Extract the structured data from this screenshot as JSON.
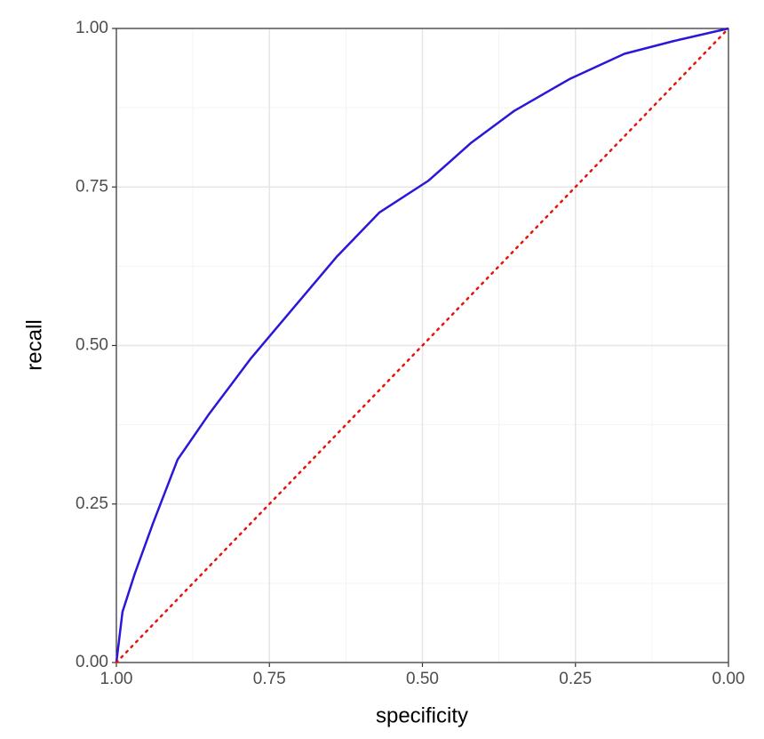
{
  "chart_data": {
    "type": "line",
    "xlabel": "specificity",
    "ylabel": "recall",
    "xlim": [
      1,
      0
    ],
    "ylim": [
      0,
      1
    ],
    "xticks": [
      {
        "value": 1,
        "label": "1.00"
      },
      {
        "value": 0.75,
        "label": "0.75"
      },
      {
        "value": 0.5,
        "label": "0.50"
      },
      {
        "value": 0.25,
        "label": "0.25"
      },
      {
        "value": 0,
        "label": "0.00"
      }
    ],
    "yticks": [
      {
        "value": 0,
        "label": "0.00"
      },
      {
        "value": 0.25,
        "label": "0.25"
      },
      {
        "value": 0.5,
        "label": "0.50"
      },
      {
        "value": 0.75,
        "label": "0.75"
      },
      {
        "value": 1,
        "label": "1.00"
      }
    ],
    "grid": true,
    "minor_grid": true,
    "series": [
      {
        "color": "#2b17d8",
        "dash": "solid",
        "x": [
          1,
          0.99,
          0.97,
          0.94,
          0.9,
          0.85,
          0.78,
          0.71,
          0.64,
          0.57,
          0.49,
          0.42,
          0.35,
          0.26,
          0.17,
          0.09,
          0
        ],
        "values": [
          0,
          0.08,
          0.14,
          0.22,
          0.32,
          0.39,
          0.48,
          0.56,
          0.64,
          0.71,
          0.76,
          0.82,
          0.87,
          0.92,
          0.96,
          0.98,
          1
        ]
      },
      {
        "color": "#e8120c",
        "dash": "dotted",
        "x": [
          1,
          0
        ],
        "values": [
          0,
          1
        ]
      }
    ]
  }
}
